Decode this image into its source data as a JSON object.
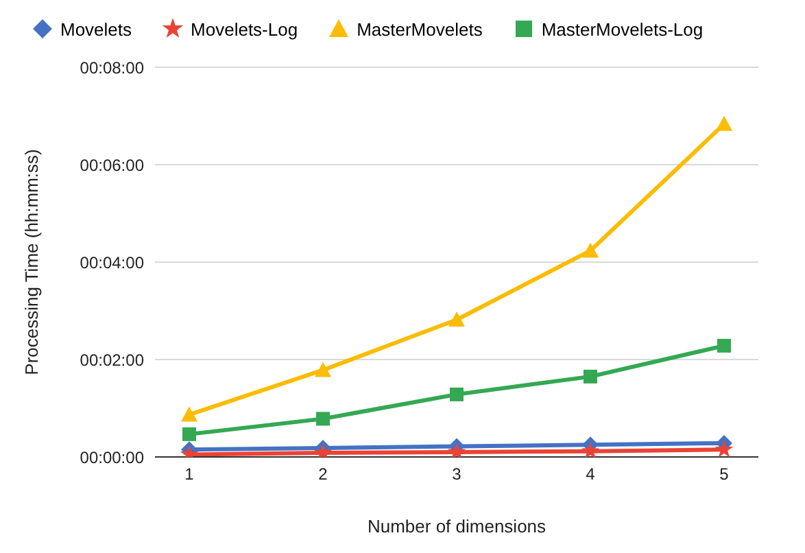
{
  "chart_data": {
    "type": "line",
    "xlabel": "Number of dimensions",
    "ylabel": "Processing Time (hh:mm:ss)",
    "categories": [
      "1",
      "2",
      "3",
      "4",
      "5"
    ],
    "series": [
      {
        "name": "Movelets",
        "color": "#4472c4",
        "marker": "diamond",
        "values": [
          9,
          11,
          13,
          15,
          17
        ]
      },
      {
        "name": "Movelets-Log",
        "color": "#ea4335",
        "marker": "star",
        "values": [
          3,
          5,
          6,
          7,
          9
        ]
      },
      {
        "name": "MasterMovelets",
        "color": "#fbbc04",
        "marker": "triangle",
        "values": [
          52,
          107,
          169,
          254,
          410
        ]
      },
      {
        "name": "MasterMovelets-Log",
        "color": "#34a853",
        "marker": "square",
        "values": [
          28,
          47,
          77,
          99,
          137
        ]
      }
    ],
    "ylim": [
      0,
      480
    ],
    "yticks": [
      {
        "value": 0,
        "label": "00:00:00"
      },
      {
        "value": 120,
        "label": "00:02:00"
      },
      {
        "value": 240,
        "label": "00:04:00"
      },
      {
        "value": 360,
        "label": "00:06:00"
      },
      {
        "value": 480,
        "label": "00:08:00"
      }
    ],
    "grid": "y",
    "legend": "top",
    "line_style": "solid"
  }
}
